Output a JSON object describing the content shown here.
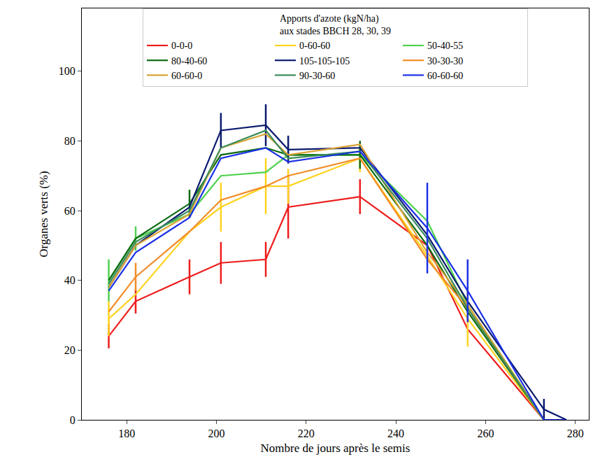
{
  "chart_data": {
    "type": "line",
    "x_label": "Nombre de jours après le semis",
    "y_label": "Organes verts (%)",
    "legend_title": "Apports d'azote (kgN/ha)\naux stades BBCH 28, 30, 39",
    "legend": "top",
    "grid": false,
    "x": [
      176,
      182,
      194,
      201,
      211,
      216,
      232,
      247,
      256,
      273,
      278
    ],
    "xlim": [
      170,
      283
    ],
    "xticks": [
      180,
      200,
      220,
      240,
      260,
      280
    ],
    "ylim": [
      0,
      118
    ],
    "yticks": [
      0,
      20,
      40,
      60,
      80,
      100
    ],
    "series": [
      {
        "name": "0-0-0",
        "color": "#ee1c1c",
        "values": [
          24,
          34,
          41,
          45,
          46,
          61,
          64,
          50,
          26,
          0,
          null
        ],
        "error": [
          3.5,
          3.5,
          5,
          6,
          5,
          9,
          5,
          null,
          null,
          null,
          null
        ]
      },
      {
        "name": "0-60-60",
        "color": "#ffd21f",
        "values": [
          29,
          36,
          54,
          61,
          67,
          67,
          75,
          47,
          29,
          0,
          null
        ],
        "error": [
          5,
          null,
          null,
          7,
          8,
          5,
          4,
          null,
          8,
          null,
          null
        ]
      },
      {
        "name": "50-40-55",
        "color": "#4fd14f",
        "values": [
          40,
          52,
          59,
          70,
          71,
          76,
          76,
          57,
          33,
          0,
          null
        ],
        "error": [
          6,
          3.5,
          null,
          null,
          null,
          null,
          null,
          null,
          null,
          null,
          null
        ]
      },
      {
        "name": "80-40-60",
        "color": "#0b6b12",
        "values": [
          40,
          52,
          62,
          76,
          78,
          76,
          76,
          50,
          31,
          0,
          null
        ],
        "error": [
          null,
          null,
          4,
          null,
          null,
          null,
          4,
          null,
          null,
          null,
          null
        ]
      },
      {
        "name": "105-105-105",
        "color": "#0b1a6e",
        "values": [
          38,
          50,
          61,
          83,
          84.5,
          77.5,
          78,
          53,
          34,
          3,
          0
        ],
        "error": [
          null,
          null,
          null,
          5,
          6,
          4,
          null,
          null,
          null,
          3,
          null
        ]
      },
      {
        "name": "30-30-30",
        "color": "#f28c28",
        "values": [
          31,
          41,
          54,
          63,
          67,
          70,
          75,
          46,
          32,
          0,
          null
        ],
        "error": [
          null,
          4,
          null,
          null,
          null,
          null,
          null,
          null,
          null,
          null,
          null
        ]
      },
      {
        "name": "60-60-0",
        "color": "#d9a233",
        "values": [
          38,
          50,
          59,
          78,
          82,
          76,
          79,
          48,
          33,
          0,
          null
        ],
        "error": [
          null,
          null,
          null,
          null,
          null,
          null,
          null,
          null,
          null,
          null,
          null
        ]
      },
      {
        "name": "90-30-60",
        "color": "#3a8c5a",
        "values": [
          39,
          51,
          60,
          78,
          83,
          75,
          77,
          52,
          32,
          0,
          null
        ],
        "error": [
          null,
          null,
          null,
          null,
          null,
          null,
          null,
          null,
          null,
          null,
          null
        ]
      },
      {
        "name": "60-60-60",
        "color": "#1a30e6",
        "values": [
          37,
          48,
          58,
          75,
          78,
          74,
          77,
          55,
          37,
          0,
          0
        ],
        "error": [
          null,
          null,
          null,
          null,
          null,
          null,
          null,
          13,
          9,
          null,
          null
        ]
      }
    ]
  }
}
